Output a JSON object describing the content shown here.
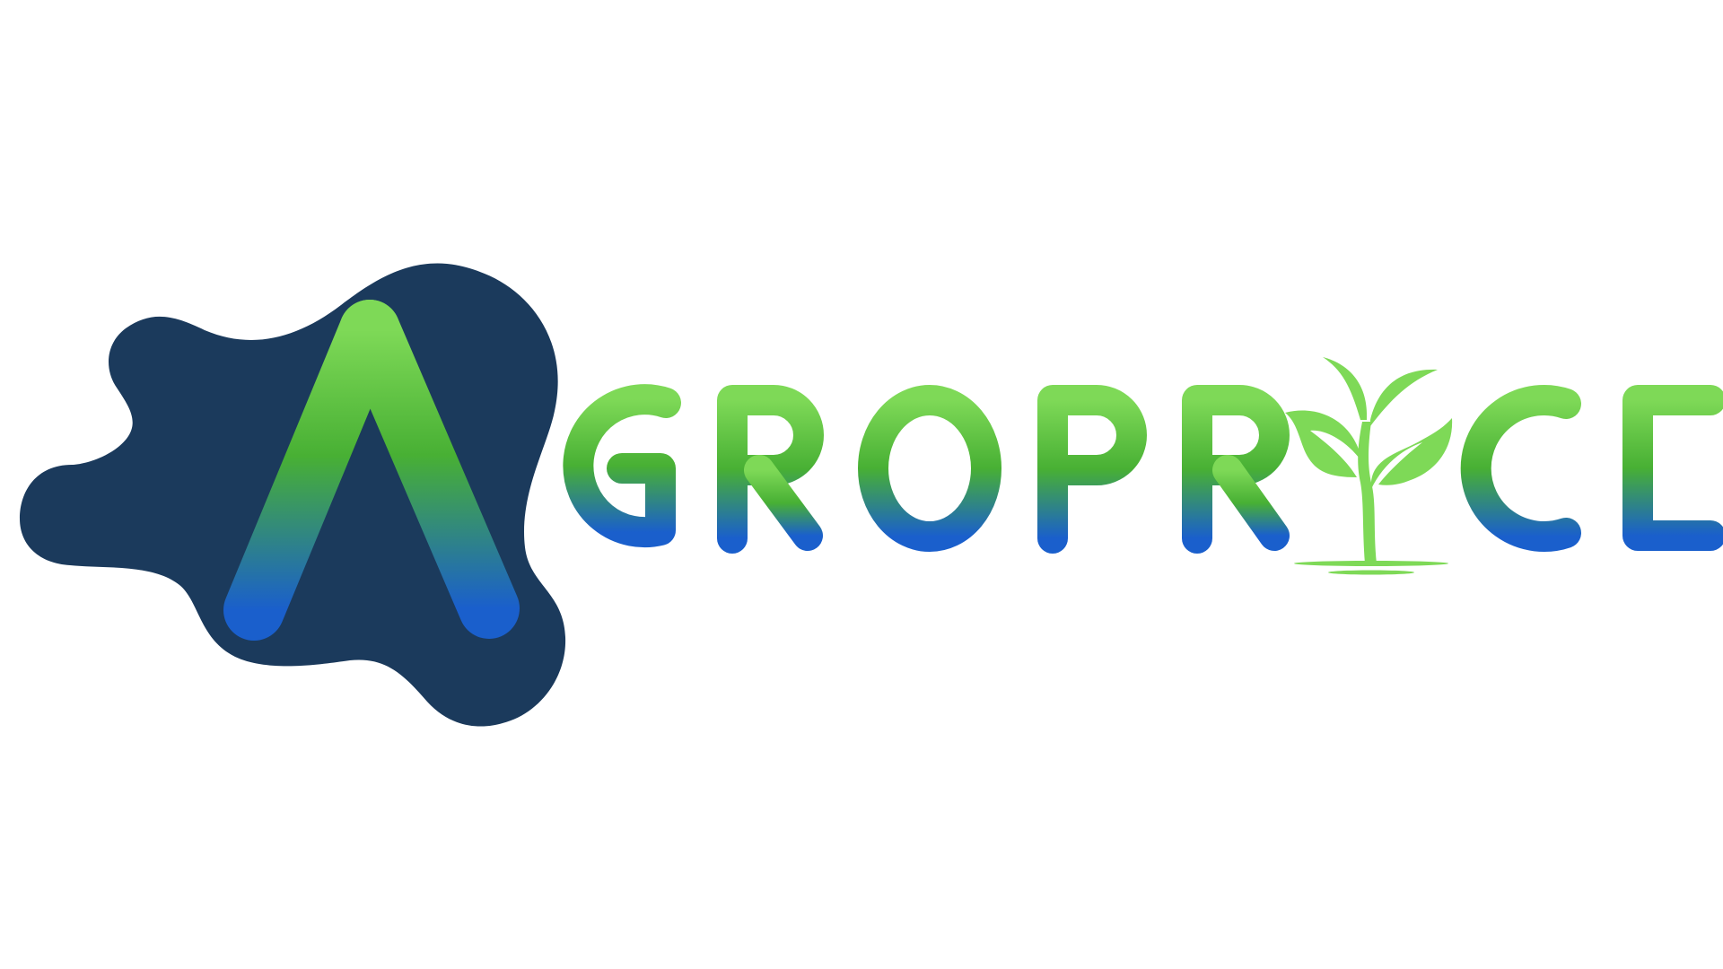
{
  "logo": {
    "wordmark": "AGROPRICE",
    "colors": {
      "blob": "#1b3a5c",
      "green_light": "#7ed957",
      "green_mid": "#48b034",
      "blue": "#1a5fcc",
      "leaf": "#7ed957"
    },
    "icons": [
      "sprout-icon"
    ]
  }
}
